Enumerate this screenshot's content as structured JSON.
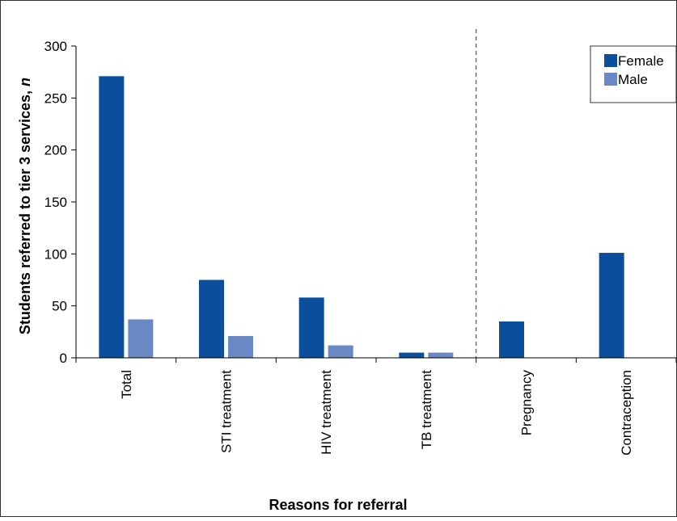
{
  "chart_data": {
    "type": "bar",
    "xlabel": "Reasons for referral",
    "ylabel": "Students referred to tier 3 services,",
    "ylabel_italic_suffix": "n",
    "ylim": [
      0,
      300
    ],
    "yticks": [
      0,
      50,
      100,
      150,
      200,
      250,
      300
    ],
    "categories": [
      "Total",
      "STI treatment",
      "HIV treatment",
      "TB treatment",
      "Pregnancy",
      "Contraception"
    ],
    "series": [
      {
        "name": "Female",
        "color": "#0b4f9c",
        "values": [
          271,
          75,
          58,
          5,
          35,
          101
        ]
      },
      {
        "name": "Male",
        "color": "#6a89c4",
        "values": [
          37,
          21,
          12,
          5,
          null,
          null
        ]
      }
    ],
    "legend_position": "top-right",
    "grid": false,
    "separator_after_category_index": 3
  }
}
